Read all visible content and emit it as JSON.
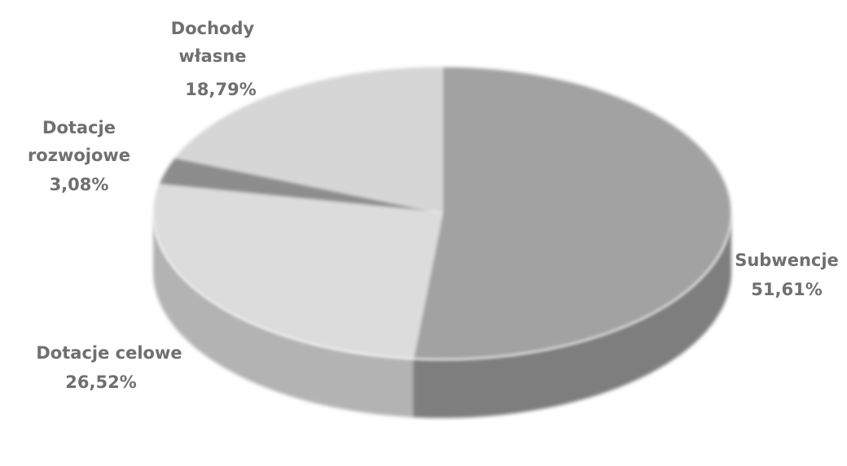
{
  "chart_data": {
    "type": "pie",
    "three_d": true,
    "title": "",
    "slices": [
      {
        "name": "Subwencje",
        "label": "51,61%",
        "value": 51.61,
        "color": "#a2a2a2",
        "side_color": "#7e7e7e"
      },
      {
        "name": "Dotacje celowe",
        "label": "26,52%",
        "value": 26.52,
        "color": "#dcdcdc",
        "side_color": "#b3b3b3"
      },
      {
        "name": "Dotacje rozwojowe",
        "label": "3,08%",
        "value": 3.08,
        "color": "#8d8d8d",
        "side_color": "#6e6e6e"
      },
      {
        "name": "Dochody własne",
        "label": "18,79%",
        "value": 18.79,
        "color": "#d6d6d6",
        "side_color": "#aaaaaa"
      }
    ]
  }
}
